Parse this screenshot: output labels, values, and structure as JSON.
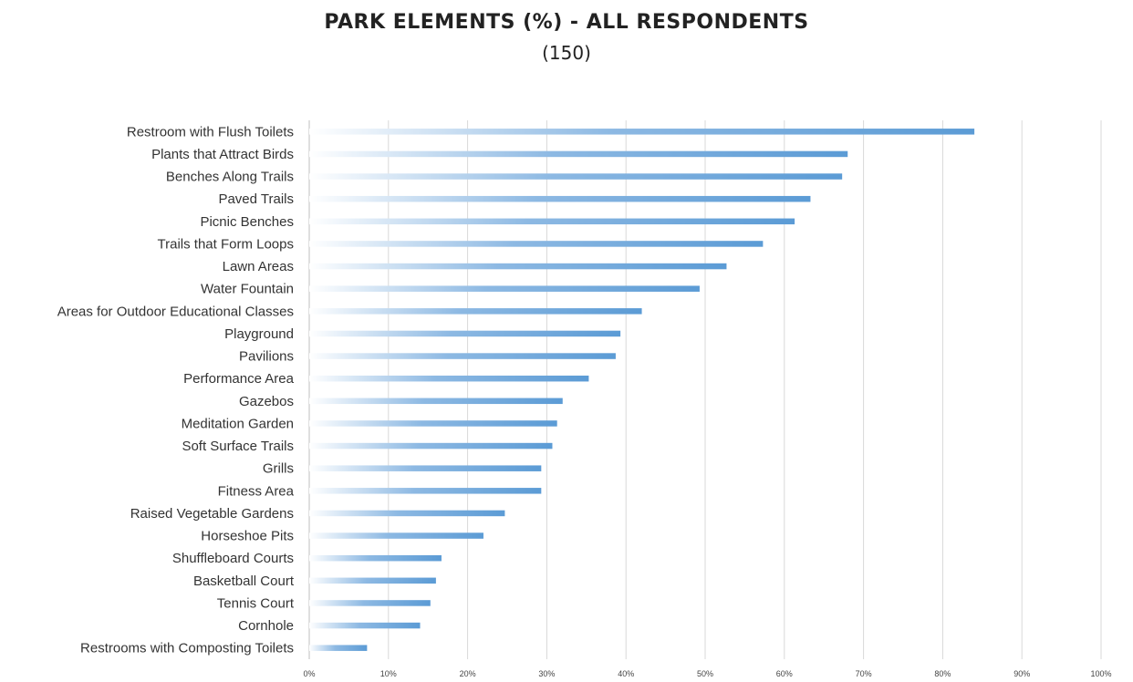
{
  "chart_data": {
    "type": "bar",
    "orientation": "horizontal",
    "title": "PARK ELEMENTS (%) - ALL RESPONDENTS",
    "subtitle": "(150)",
    "xlabel": "",
    "ylabel": "",
    "xlim": [
      0,
      100
    ],
    "grid": true,
    "bar_color": "#5b9bd5",
    "x_ticks": [
      "0%",
      "10%",
      "20%",
      "30%",
      "40%",
      "50%",
      "60%",
      "70%",
      "80%",
      "90%",
      "100%"
    ],
    "categories": [
      "Restroom with Flush Toilets",
      "Plants that Attract Birds",
      "Benches Along Trails",
      "Paved Trails",
      "Picnic Benches",
      "Trails that Form Loops",
      "Lawn Areas",
      "Water Fountain",
      "Areas for Outdoor Educational Classes",
      "Playground",
      "Pavilions",
      "Performance Area",
      "Gazebos",
      "Meditation Garden",
      "Soft Surface Trails",
      "Grills",
      "Fitness Area",
      "Raised Vegetable Gardens",
      "Horseshoe Pits",
      "Shuffleboard Courts",
      "Basketball Court",
      "Tennis Court",
      "Cornhole",
      "Restrooms with Composting Toilets"
    ],
    "values": [
      84,
      68,
      67.3,
      63.3,
      61.3,
      57.3,
      52.7,
      49.3,
      42,
      39.3,
      38.7,
      35.3,
      32,
      31.3,
      30.7,
      29.3,
      29.3,
      24.7,
      22,
      16.7,
      16,
      15.3,
      14,
      7.3
    ]
  }
}
